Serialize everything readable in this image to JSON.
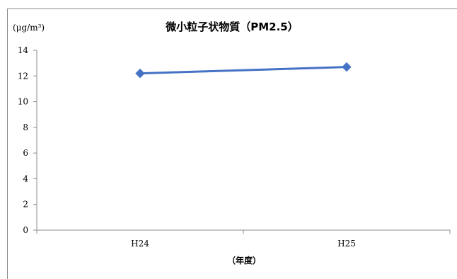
{
  "chart_data": {
    "type": "line",
    "title": "微小粒子状物質（PM2.5）",
    "unit_label": "(μg/m³)",
    "xlabel": "（年度）",
    "ylabel": "",
    "categories": [
      "H24",
      "H25"
    ],
    "series": [
      {
        "values": [
          12.2,
          12.7
        ],
        "color": "#4472c4"
      }
    ],
    "ylim": [
      0,
      14
    ],
    "yticks": [
      0,
      2,
      4,
      6,
      8,
      10,
      12,
      14
    ],
    "grid": false,
    "legend": "none"
  }
}
